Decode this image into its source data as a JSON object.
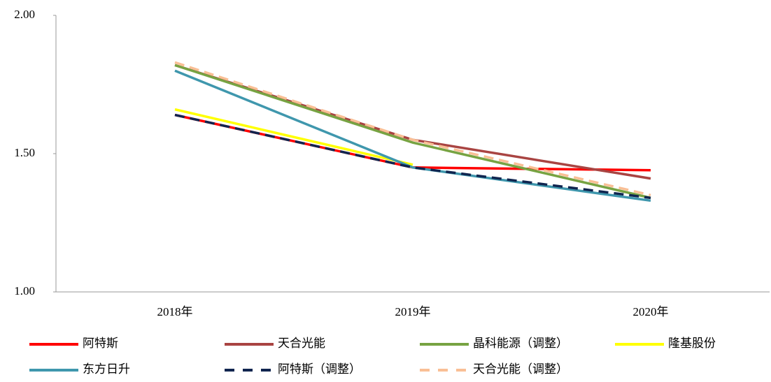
{
  "chart_data": {
    "type": "line",
    "categories": [
      "2018年",
      "2019年",
      "2020年"
    ],
    "ylim": [
      1,
      2
    ],
    "yticks": [
      {
        "value": 1,
        "label": "1.00"
      },
      {
        "value": 1.5,
        "label": "1.50"
      },
      {
        "value": 2,
        "label": "2.00"
      }
    ],
    "grid": false,
    "legend": "bottom",
    "series": [
      {
        "name": "阿特斯",
        "color": "#ff0000",
        "dashed": false,
        "values": [
          1.64,
          1.45,
          1.44
        ]
      },
      {
        "name": "天合光能",
        "color": "#a94442",
        "dashed": false,
        "values": [
          1.82,
          1.55,
          1.41
        ]
      },
      {
        "name": "晶科能源（调整）",
        "color": "#77a342",
        "dashed": false,
        "values": [
          1.82,
          1.54,
          1.34
        ]
      },
      {
        "name": "隆基股份",
        "color": "#ffff00",
        "dashed": false,
        "values": [
          1.66,
          1.46,
          null
        ]
      },
      {
        "name": "东方日升",
        "color": "#3f97ad",
        "dashed": false,
        "values": [
          1.8,
          1.45,
          1.33
        ]
      },
      {
        "name": "阿特斯（调整）",
        "color": "#10254f",
        "dashed": true,
        "values": [
          1.64,
          1.45,
          1.34
        ]
      },
      {
        "name": "天合光能（调整）",
        "color": "#f9bf95",
        "dashed": true,
        "values": [
          1.83,
          1.55,
          1.35
        ]
      }
    ]
  }
}
